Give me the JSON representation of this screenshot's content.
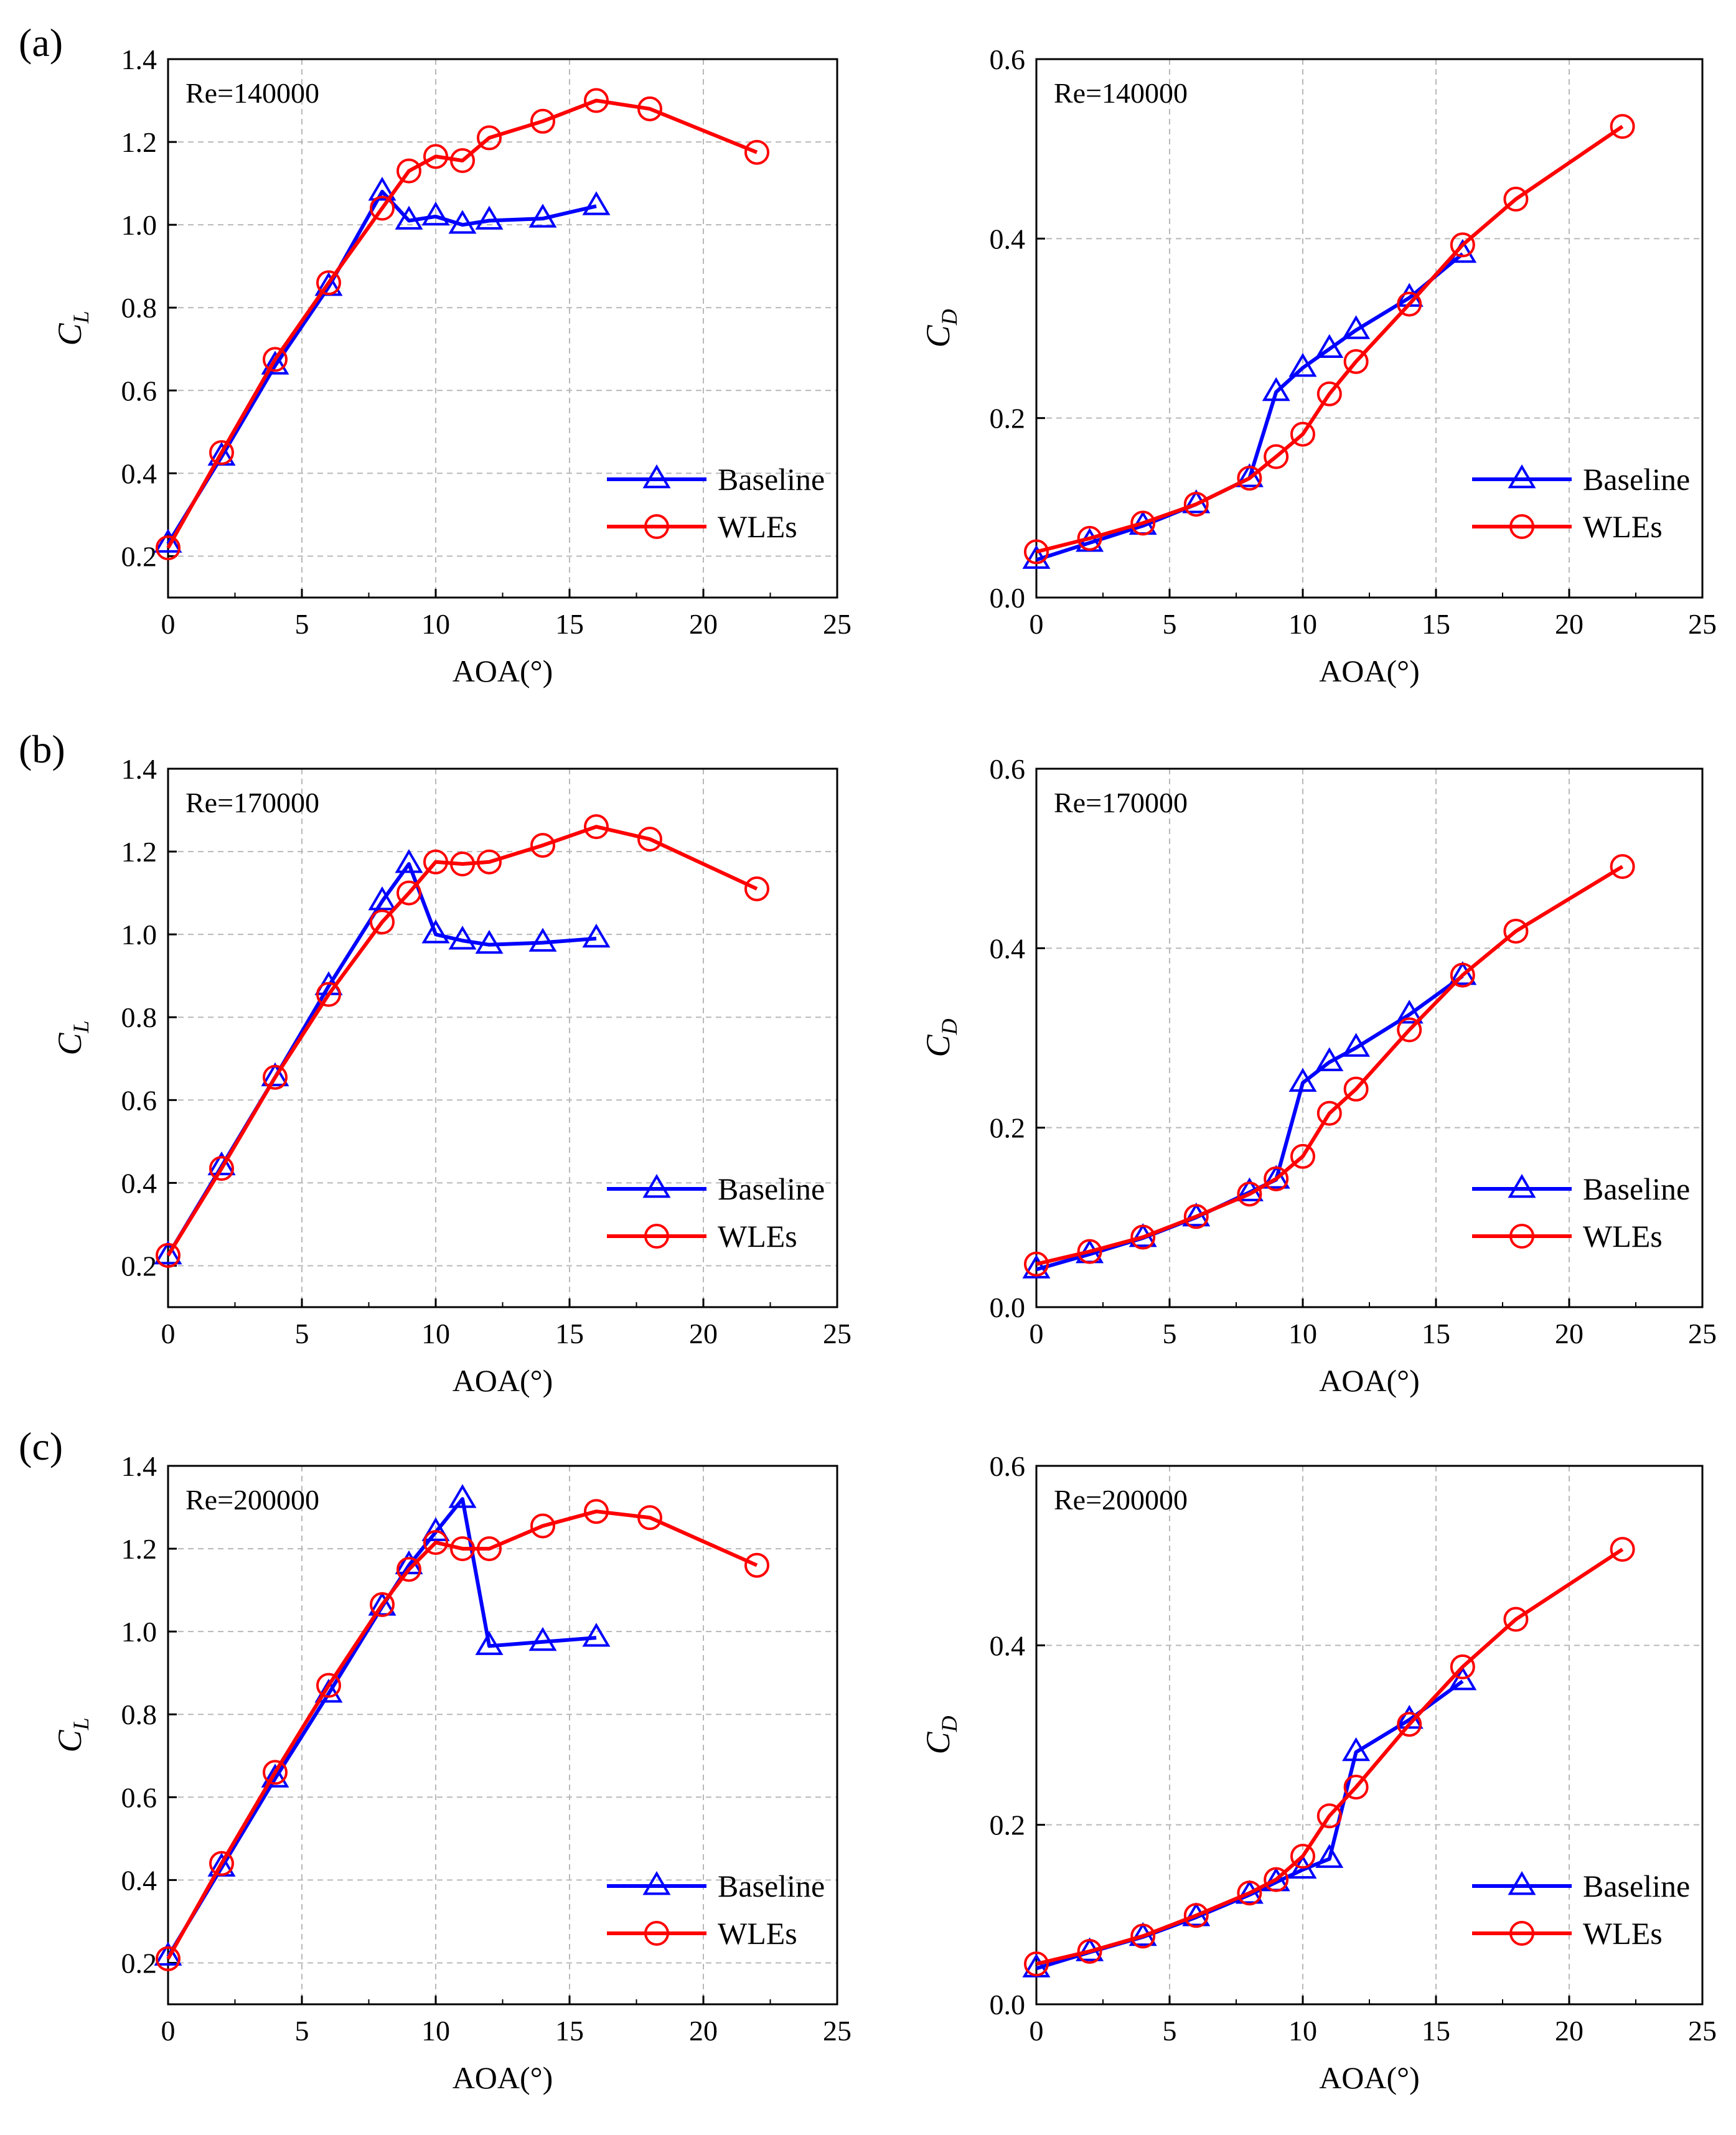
{
  "figure": {
    "panel_labels": [
      "(a)",
      "(b)",
      "(c)"
    ],
    "colors": {
      "baseline": "#0000ff",
      "wles": "#ff0000",
      "grid": "#b8b8b8",
      "axis": "#000000"
    }
  },
  "chart_data": [
    {
      "type": "line",
      "panel": "(a)",
      "title": "",
      "annotation": "Re=140000",
      "xlabel": "AOA(°)",
      "ylabel": "C",
      "ylabel_sub": "L",
      "xlim": [
        0,
        25
      ],
      "ylim": [
        0.1,
        1.4
      ],
      "xticks": [
        "0",
        "5",
        "10",
        "15",
        "20",
        "25"
      ],
      "yticks": [
        "0.2",
        "0.4",
        "0.6",
        "0.8",
        "1.0",
        "1.2",
        "1.4"
      ],
      "grid": true,
      "legend_position": "bottom-right",
      "series": [
        {
          "name": "Baseline",
          "marker": "triangle",
          "color": "#0000ff",
          "x": [
            0,
            2,
            4,
            6,
            8,
            9,
            10,
            11,
            12,
            14,
            16
          ],
          "y": [
            0.23,
            0.44,
            0.66,
            0.85,
            1.08,
            1.01,
            1.02,
            1.0,
            1.01,
            1.015,
            1.045
          ]
        },
        {
          "name": "WLEs",
          "marker": "circle",
          "color": "#ff0000",
          "x": [
            0,
            2,
            4,
            6,
            8,
            9,
            10,
            11,
            12,
            14,
            16,
            18,
            22
          ],
          "y": [
            0.22,
            0.45,
            0.675,
            0.86,
            1.04,
            1.13,
            1.165,
            1.155,
            1.21,
            1.25,
            1.3,
            1.28,
            1.175
          ]
        }
      ]
    },
    {
      "type": "line",
      "panel": "(a)",
      "title": "",
      "annotation": "Re=140000",
      "xlabel": "AOA(°)",
      "ylabel": "C",
      "ylabel_sub": "D",
      "xlim": [
        0,
        25
      ],
      "ylim": [
        0.0,
        0.6
      ],
      "xticks": [
        "0",
        "5",
        "10",
        "15",
        "20",
        "25"
      ],
      "yticks": [
        "0.0",
        "0.2",
        "0.4",
        "0.6"
      ],
      "grid": true,
      "legend_position": "bottom-right",
      "series": [
        {
          "name": "Baseline",
          "marker": "triangle",
          "color": "#0000ff",
          "x": [
            0,
            2,
            4,
            6,
            8,
            9,
            10,
            11,
            12,
            14,
            16
          ],
          "y": [
            0.042,
            0.061,
            0.08,
            0.104,
            0.133,
            0.229,
            0.256,
            0.277,
            0.298,
            0.334,
            0.383
          ]
        },
        {
          "name": "WLEs",
          "marker": "circle",
          "color": "#ff0000",
          "x": [
            0,
            2,
            4,
            6,
            8,
            9,
            10,
            11,
            12,
            14,
            16,
            18,
            22
          ],
          "y": [
            0.051,
            0.066,
            0.083,
            0.104,
            0.133,
            0.157,
            0.182,
            0.227,
            0.263,
            0.327,
            0.393,
            0.444,
            0.525
          ]
        }
      ]
    },
    {
      "type": "line",
      "panel": "(b)",
      "title": "",
      "annotation": "Re=170000",
      "xlabel": "AOA(°)",
      "ylabel": "C",
      "ylabel_sub": "L",
      "xlim": [
        0,
        25
      ],
      "ylim": [
        0.1,
        1.4
      ],
      "xticks": [
        "0",
        "5",
        "10",
        "15",
        "20",
        "25"
      ],
      "yticks": [
        "0.2",
        "0.4",
        "0.6",
        "0.8",
        "1.0",
        "1.2",
        "1.4"
      ],
      "grid": true,
      "legend_position": "bottom-right",
      "series": [
        {
          "name": "Baseline",
          "marker": "triangle",
          "color": "#0000ff",
          "x": [
            0,
            2,
            4,
            6,
            8,
            9,
            10,
            11,
            12,
            14,
            16
          ],
          "y": [
            0.225,
            0.44,
            0.655,
            0.875,
            1.08,
            1.17,
            1.0,
            0.985,
            0.975,
            0.98,
            0.99
          ]
        },
        {
          "name": "WLEs",
          "marker": "circle",
          "color": "#ff0000",
          "x": [
            0,
            2,
            4,
            6,
            8,
            9,
            10,
            11,
            12,
            14,
            16,
            18,
            22
          ],
          "y": [
            0.225,
            0.435,
            0.655,
            0.855,
            1.03,
            1.1,
            1.175,
            1.17,
            1.175,
            1.215,
            1.26,
            1.23,
            1.11
          ]
        }
      ]
    },
    {
      "type": "line",
      "panel": "(b)",
      "title": "",
      "annotation": "Re=170000",
      "xlabel": "AOA(°)",
      "ylabel": "C",
      "ylabel_sub": "D",
      "xlim": [
        0,
        25
      ],
      "ylim": [
        0.0,
        0.6
      ],
      "xticks": [
        "0",
        "5",
        "10",
        "15",
        "20",
        "25"
      ],
      "yticks": [
        "0.0",
        "0.2",
        "0.4",
        "0.6"
      ],
      "grid": true,
      "legend_position": "bottom-right",
      "series": [
        {
          "name": "Baseline",
          "marker": "triangle",
          "color": "#0000ff",
          "x": [
            0,
            2,
            4,
            6,
            8,
            9,
            10,
            11,
            12,
            14,
            16
          ],
          "y": [
            0.042,
            0.059,
            0.077,
            0.1,
            0.128,
            0.142,
            0.25,
            0.273,
            0.289,
            0.326,
            0.369
          ]
        },
        {
          "name": "WLEs",
          "marker": "circle",
          "color": "#ff0000",
          "x": [
            0,
            2,
            4,
            6,
            8,
            9,
            10,
            11,
            12,
            14,
            16,
            18,
            22
          ],
          "y": [
            0.048,
            0.062,
            0.078,
            0.101,
            0.126,
            0.143,
            0.168,
            0.216,
            0.243,
            0.309,
            0.37,
            0.419,
            0.491
          ]
        }
      ]
    },
    {
      "type": "line",
      "panel": "(c)",
      "title": "",
      "annotation": "Re=200000",
      "xlabel": "AOA(°)",
      "ylabel": "C",
      "ylabel_sub": "L",
      "xlim": [
        0,
        25
      ],
      "ylim": [
        0.1,
        1.4
      ],
      "xticks": [
        "0",
        "5",
        "10",
        "15",
        "20",
        "25"
      ],
      "yticks": [
        "0.2",
        "0.4",
        "0.6",
        "0.8",
        "1.0",
        "1.2",
        "1.4"
      ],
      "grid": true,
      "legend_position": "bottom-right",
      "series": [
        {
          "name": "Baseline",
          "marker": "triangle",
          "color": "#0000ff",
          "x": [
            0,
            2,
            4,
            6,
            8,
            9,
            10,
            11,
            12,
            14,
            16
          ],
          "y": [
            0.215,
            0.43,
            0.645,
            0.85,
            1.06,
            1.16,
            1.24,
            1.32,
            0.965,
            0.975,
            0.985
          ]
        },
        {
          "name": "WLEs",
          "marker": "circle",
          "color": "#ff0000",
          "x": [
            0,
            2,
            4,
            6,
            8,
            9,
            10,
            11,
            12,
            14,
            16,
            18,
            22
          ],
          "y": [
            0.21,
            0.44,
            0.66,
            0.87,
            1.065,
            1.15,
            1.215,
            1.2,
            1.2,
            1.255,
            1.29,
            1.275,
            1.16
          ]
        }
      ]
    },
    {
      "type": "line",
      "panel": "(c)",
      "title": "",
      "annotation": "Re=200000",
      "xlabel": "AOA(°)",
      "ylabel": "C",
      "ylabel_sub": "D",
      "xlim": [
        0,
        25
      ],
      "ylim": [
        0.0,
        0.6
      ],
      "xticks": [
        "0",
        "5",
        "10",
        "15",
        "20",
        "25"
      ],
      "yticks": [
        "0.0",
        "0.2",
        "0.4",
        "0.6"
      ],
      "grid": true,
      "legend_position": "bottom-right",
      "series": [
        {
          "name": "Baseline",
          "marker": "triangle",
          "color": "#0000ff",
          "x": [
            0,
            2,
            4,
            6,
            8,
            9,
            10,
            11,
            12,
            14,
            16
          ],
          "y": [
            0.04,
            0.058,
            0.075,
            0.097,
            0.122,
            0.136,
            0.15,
            0.162,
            0.281,
            0.317,
            0.36
          ]
        },
        {
          "name": "WLEs",
          "marker": "circle",
          "color": "#ff0000",
          "x": [
            0,
            2,
            4,
            6,
            8,
            9,
            10,
            11,
            12,
            14,
            16,
            18,
            22
          ],
          "y": [
            0.045,
            0.059,
            0.076,
            0.099,
            0.124,
            0.139,
            0.165,
            0.21,
            0.242,
            0.312,
            0.376,
            0.429,
            0.507
          ]
        }
      ]
    }
  ]
}
